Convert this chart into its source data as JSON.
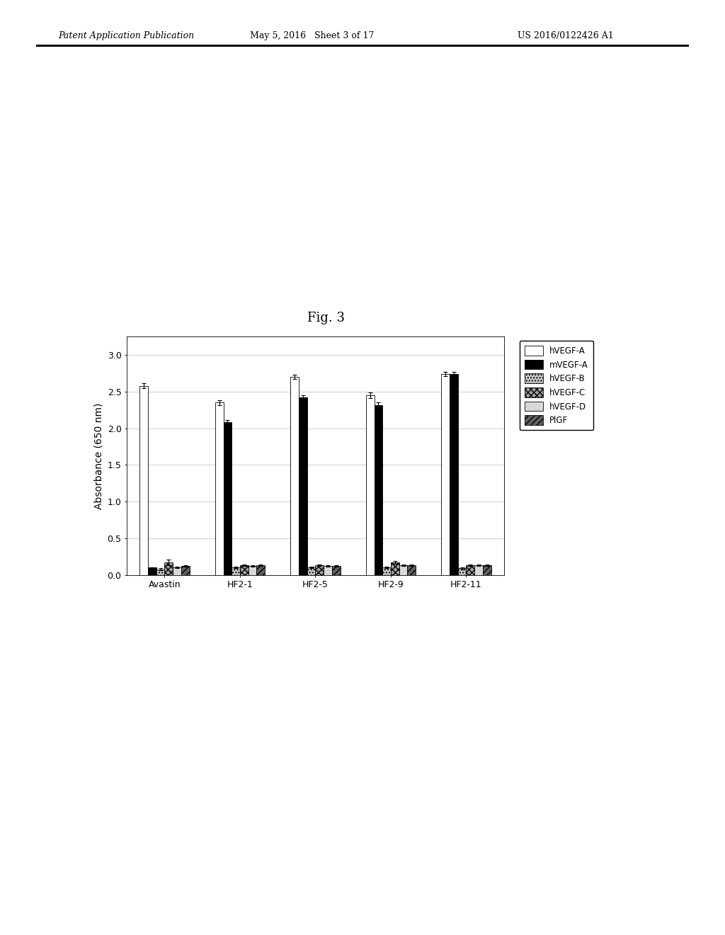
{
  "title": "Fig. 3",
  "header_left": "Patent Application Publication",
  "header_mid": "May 5, 2016   Sheet 3 of 17",
  "header_right": "US 2016/0122426 A1",
  "ylabel": "Absorbance (650 nm)",
  "ylim": [
    0.0,
    3.25
  ],
  "yticks": [
    0.0,
    0.5,
    1.0,
    1.5,
    2.0,
    2.5,
    3.0
  ],
  "groups": [
    "Avastin",
    "HF2-1",
    "HF2-5",
    "HF2-9",
    "HF2-11"
  ],
  "series_labels": [
    "hVEGF-A",
    "mVEGF-A",
    "hVEGF-B",
    "hVEGF-C",
    "hVEGF-D",
    "PlGF"
  ],
  "values": {
    "hVEGF-A": [
      2.58,
      2.35,
      2.7,
      2.45,
      2.74
    ],
    "mVEGF-A": [
      0.1,
      2.08,
      2.42,
      2.32,
      2.74
    ],
    "hVEGF-B": [
      0.08,
      0.1,
      0.1,
      0.1,
      0.09
    ],
    "hVEGF-C": [
      0.17,
      0.13,
      0.13,
      0.17,
      0.13
    ],
    "hVEGF-D": [
      0.1,
      0.12,
      0.12,
      0.13,
      0.13
    ],
    "PlGF": [
      0.12,
      0.13,
      0.12,
      0.13,
      0.13
    ]
  },
  "errors": {
    "hVEGF-A": [
      0.03,
      0.03,
      0.03,
      0.04,
      0.03
    ],
    "mVEGF-A": [
      0.0,
      0.03,
      0.03,
      0.03,
      0.03
    ],
    "hVEGF-B": [
      0.01,
      0.01,
      0.01,
      0.01,
      0.01
    ],
    "hVEGF-C": [
      0.04,
      0.01,
      0.01,
      0.02,
      0.01
    ],
    "hVEGF-D": [
      0.01,
      0.01,
      0.01,
      0.01,
      0.01
    ],
    "PlGF": [
      0.01,
      0.01,
      0.01,
      0.01,
      0.01
    ]
  },
  "background_color": "#ffffff",
  "header_fontsize": 9,
  "fig_title_fontsize": 13,
  "axis_label_fontsize": 10,
  "tick_fontsize": 9,
  "legend_fontsize": 8.5
}
